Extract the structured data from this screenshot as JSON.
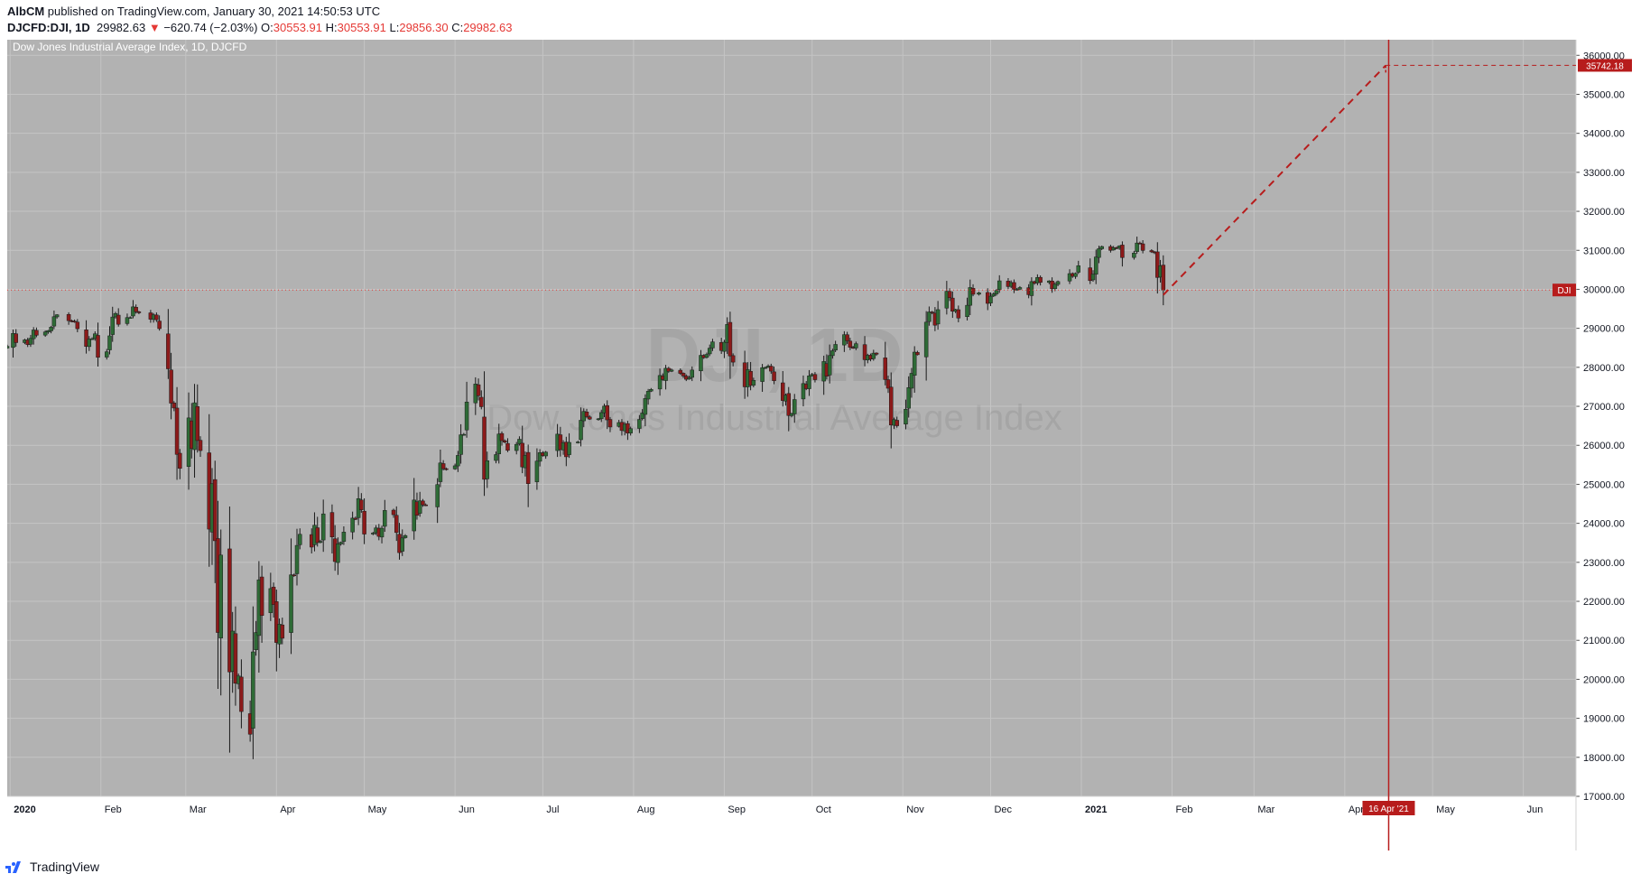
{
  "header": {
    "author": "AlbCM",
    "published_text": " published on TradingView.com, January 30, 2021 14:50:53 UTC",
    "symbol": "DJCFD:DJI, 1D",
    "last": "29982.63",
    "arrow": "▼",
    "change": "−620.74 (−2.03%)",
    "o_label": "O:",
    "o_value": "30553.91",
    "h_label": "H:",
    "h_value": "30553.91",
    "l_label": "L:",
    "l_value": "29856.30",
    "c_label": "C:",
    "c_value": "29982.63"
  },
  "footer": {
    "brand": "TradingView",
    "logo_icon": "tradingview-logo-icon"
  },
  "colors": {
    "background": "#b2b2b2",
    "grid": "#c4c4c4",
    "up": "#2e6b36",
    "down": "#8c1a1a",
    "accent": "#b71c1c",
    "last_price_line": "#e53935"
  },
  "chart_data": {
    "type": "candlestick",
    "title": "Dow Jones Industrial Average Index, 1D, DJCFD",
    "watermark_symbol": "DJI, 1D",
    "watermark_name": "Dow Jones Industrial Average Index",
    "ylim": [
      17000,
      36400
    ],
    "y_ticks": [
      17000,
      18000,
      19000,
      20000,
      21000,
      22000,
      23000,
      24000,
      25000,
      26000,
      27000,
      28000,
      29000,
      30000,
      31000,
      32000,
      33000,
      34000,
      35000,
      36000
    ],
    "y_tick_labels": [
      "17000.00",
      "18000.00",
      "19000.00",
      "20000.00",
      "21000.00",
      "22000.00",
      "23000.00",
      "24000.00",
      "25000.00",
      "26000.00",
      "27000.00",
      "28000.00",
      "29000.00",
      "30000.00",
      "31000.00",
      "32000.00",
      "33000.00",
      "34000.00",
      "35000.00",
      "36000.00"
    ],
    "x_months": [
      "2020",
      "Feb",
      "Mar",
      "Apr",
      "May",
      "Jun",
      "Jul",
      "Aug",
      "Sep",
      "Oct",
      "Nov",
      "Dec",
      "2021",
      "Feb",
      "Mar",
      "Apr",
      "May",
      "Jun"
    ],
    "x_month_dates": [
      "2020-01-01",
      "2020-02-01",
      "2020-03-01",
      "2020-04-01",
      "2020-05-01",
      "2020-06-01",
      "2020-07-01",
      "2020-08-01",
      "2020-09-01",
      "2020-10-01",
      "2020-11-01",
      "2020-12-01",
      "2021-01-01",
      "2021-02-01",
      "2021-03-01",
      "2021-04-01",
      "2021-05-01",
      "2021-06-01"
    ],
    "x_range": [
      "2019-12-31",
      "2021-06-19"
    ],
    "grid": true,
    "closes": [
      [
        "2019-12-31",
        28538
      ],
      [
        "2020-01-02",
        28869
      ],
      [
        "2020-01-03",
        28634
      ],
      [
        "2020-01-06",
        28703
      ],
      [
        "2020-01-07",
        28583
      ],
      [
        "2020-01-08",
        28745
      ],
      [
        "2020-01-09",
        28957
      ],
      [
        "2020-01-10",
        28824
      ],
      [
        "2020-01-13",
        28907
      ],
      [
        "2020-01-14",
        28940
      ],
      [
        "2020-01-15",
        29030
      ],
      [
        "2020-01-16",
        29298
      ],
      [
        "2020-01-17",
        29348
      ],
      [
        "2020-01-21",
        29196
      ],
      [
        "2020-01-22",
        29186
      ],
      [
        "2020-01-23",
        29160
      ],
      [
        "2020-01-24",
        28990
      ],
      [
        "2020-01-27",
        28535
      ],
      [
        "2020-01-28",
        28723
      ],
      [
        "2020-01-29",
        28734
      ],
      [
        "2020-01-30",
        28859
      ],
      [
        "2020-01-31",
        28256
      ],
      [
        "2020-02-03",
        28399
      ],
      [
        "2020-02-04",
        28808
      ],
      [
        "2020-02-05",
        29290
      ],
      [
        "2020-02-06",
        29380
      ],
      [
        "2020-02-07",
        29103
      ],
      [
        "2020-02-10",
        29276
      ],
      [
        "2020-02-11",
        29276
      ],
      [
        "2020-02-12",
        29551
      ],
      [
        "2020-02-13",
        29424
      ],
      [
        "2020-02-14",
        29398
      ],
      [
        "2020-02-18",
        29232
      ],
      [
        "2020-02-19",
        29348
      ],
      [
        "2020-02-20",
        29220
      ],
      [
        "2020-02-21",
        28992
      ],
      [
        "2020-02-24",
        27961
      ],
      [
        "2020-02-25",
        27081
      ],
      [
        "2020-02-26",
        26957
      ],
      [
        "2020-02-27",
        25767
      ],
      [
        "2020-02-28",
        25409
      ],
      [
        "2020-03-02",
        26703
      ],
      [
        "2020-03-03",
        25917
      ],
      [
        "2020-03-04",
        27091
      ],
      [
        "2020-03-05",
        26122
      ],
      [
        "2020-03-06",
        25865
      ],
      [
        "2020-03-09",
        23851
      ],
      [
        "2020-03-10",
        25018
      ],
      [
        "2020-03-11",
        23553
      ],
      [
        "2020-03-12",
        21200
      ],
      [
        "2020-03-13",
        23186
      ],
      [
        "2020-03-16",
        20189
      ],
      [
        "2020-03-17",
        21237
      ],
      [
        "2020-03-18",
        19899
      ],
      [
        "2020-03-19",
        20087
      ],
      [
        "2020-03-20",
        19174
      ],
      [
        "2020-03-23",
        18592
      ],
      [
        "2020-03-24",
        20704
      ],
      [
        "2020-03-25",
        21201
      ],
      [
        "2020-03-26",
        22552
      ],
      [
        "2020-03-27",
        21637
      ],
      [
        "2020-03-30",
        22327
      ],
      [
        "2020-03-31",
        21917
      ],
      [
        "2020-04-01",
        20944
      ],
      [
        "2020-04-02",
        21413
      ],
      [
        "2020-04-03",
        21053
      ],
      [
        "2020-04-06",
        22680
      ],
      [
        "2020-04-07",
        22654
      ],
      [
        "2020-04-08",
        23434
      ],
      [
        "2020-04-09",
        23719
      ],
      [
        "2020-04-13",
        23390
      ],
      [
        "2020-04-14",
        23950
      ],
      [
        "2020-04-15",
        23505
      ],
      [
        "2020-04-16",
        23538
      ],
      [
        "2020-04-17",
        24242
      ],
      [
        "2020-04-20",
        23650
      ],
      [
        "2020-04-21",
        23019
      ],
      [
        "2020-04-22",
        23475
      ],
      [
        "2020-04-23",
        23515
      ],
      [
        "2020-04-24",
        23775
      ],
      [
        "2020-04-27",
        24134
      ],
      [
        "2020-04-28",
        24101
      ],
      [
        "2020-04-29",
        24634
      ],
      [
        "2020-04-30",
        24346
      ],
      [
        "2020-05-01",
        23724
      ],
      [
        "2020-05-04",
        23750
      ],
      [
        "2020-05-05",
        23883
      ],
      [
        "2020-05-06",
        23665
      ],
      [
        "2020-05-07",
        23875
      ],
      [
        "2020-05-08",
        24331
      ],
      [
        "2020-05-11",
        24221
      ],
      [
        "2020-05-12",
        23764
      ],
      [
        "2020-05-13",
        23248
      ],
      [
        "2020-05-14",
        23625
      ],
      [
        "2020-05-15",
        23685
      ],
      [
        "2020-05-18",
        24597
      ],
      [
        "2020-05-19",
        24206
      ],
      [
        "2020-05-20",
        24576
      ],
      [
        "2020-05-21",
        24474
      ],
      [
        "2020-05-22",
        24465
      ],
      [
        "2020-05-26",
        24995
      ],
      [
        "2020-05-27",
        25548
      ],
      [
        "2020-05-28",
        25401
      ],
      [
        "2020-05-29",
        25383
      ],
      [
        "2020-06-01",
        25475
      ],
      [
        "2020-06-02",
        25742
      ],
      [
        "2020-06-03",
        26270
      ],
      [
        "2020-06-04",
        26281
      ],
      [
        "2020-06-05",
        27111
      ],
      [
        "2020-06-08",
        27572
      ],
      [
        "2020-06-09",
        27272
      ],
      [
        "2020-06-10",
        26990
      ],
      [
        "2020-06-11",
        25128
      ],
      [
        "2020-06-12",
        25606
      ],
      [
        "2020-06-15",
        25763
      ],
      [
        "2020-06-16",
        26290
      ],
      [
        "2020-06-17",
        26120
      ],
      [
        "2020-06-18",
        26080
      ],
      [
        "2020-06-19",
        25871
      ],
      [
        "2020-06-22",
        26025
      ],
      [
        "2020-06-23",
        26156
      ],
      [
        "2020-06-24",
        25446
      ],
      [
        "2020-06-25",
        25745
      ],
      [
        "2020-06-26",
        25016
      ],
      [
        "2020-06-29",
        25596
      ],
      [
        "2020-06-30",
        25813
      ],
      [
        "2020-07-01",
        25735
      ],
      [
        "2020-07-02",
        25827
      ],
      [
        "2020-07-06",
        26287
      ],
      [
        "2020-07-07",
        25890
      ],
      [
        "2020-07-08",
        26067
      ],
      [
        "2020-07-09",
        25706
      ],
      [
        "2020-07-10",
        26075
      ],
      [
        "2020-07-13",
        26086
      ],
      [
        "2020-07-14",
        26643
      ],
      [
        "2020-07-15",
        26870
      ],
      [
        "2020-07-16",
        26734
      ],
      [
        "2020-07-17",
        26672
      ],
      [
        "2020-07-20",
        26680
      ],
      [
        "2020-07-21",
        26840
      ],
      [
        "2020-07-22",
        27005
      ],
      [
        "2020-07-23",
        26652
      ],
      [
        "2020-07-24",
        26470
      ],
      [
        "2020-07-27",
        26584
      ],
      [
        "2020-07-28",
        26379
      ],
      [
        "2020-07-29",
        26540
      ],
      [
        "2020-07-30",
        26314
      ],
      [
        "2020-07-31",
        26428
      ],
      [
        "2020-08-03",
        26664
      ],
      [
        "2020-08-04",
        26828
      ],
      [
        "2020-08-05",
        27201
      ],
      [
        "2020-08-06",
        27387
      ],
      [
        "2020-08-07",
        27433
      ],
      [
        "2020-08-10",
        27791
      ],
      [
        "2020-08-11",
        27686
      ],
      [
        "2020-08-12",
        27976
      ],
      [
        "2020-08-13",
        27896
      ],
      [
        "2020-08-14",
        27931
      ],
      [
        "2020-08-17",
        27844
      ],
      [
        "2020-08-18",
        27778
      ],
      [
        "2020-08-19",
        27692
      ],
      [
        "2020-08-20",
        27739
      ],
      [
        "2020-08-21",
        27930
      ],
      [
        "2020-08-24",
        28308
      ],
      [
        "2020-08-25",
        28248
      ],
      [
        "2020-08-26",
        28331
      ],
      [
        "2020-08-27",
        28492
      ],
      [
        "2020-08-28",
        28653
      ],
      [
        "2020-08-31",
        28430
      ],
      [
        "2020-09-01",
        28645
      ],
      [
        "2020-09-02",
        29100
      ],
      [
        "2020-09-03",
        28292
      ],
      [
        "2020-09-04",
        28133
      ],
      [
        "2020-09-08",
        27500
      ],
      [
        "2020-09-09",
        27940
      ],
      [
        "2020-09-10",
        27535
      ],
      [
        "2020-09-11",
        27666
      ],
      [
        "2020-09-14",
        27993
      ],
      [
        "2020-09-15",
        27995
      ],
      [
        "2020-09-16",
        28032
      ],
      [
        "2020-09-17",
        27902
      ],
      [
        "2020-09-18",
        27657
      ],
      [
        "2020-09-21",
        27148
      ],
      [
        "2020-09-22",
        27288
      ],
      [
        "2020-09-23",
        26763
      ],
      [
        "2020-09-24",
        26815
      ],
      [
        "2020-09-25",
        27174
      ],
      [
        "2020-09-28",
        27584
      ],
      [
        "2020-09-29",
        27452
      ],
      [
        "2020-09-30",
        27782
      ],
      [
        "2020-10-01",
        27817
      ],
      [
        "2020-10-02",
        27683
      ],
      [
        "2020-10-05",
        28149
      ],
      [
        "2020-10-06",
        27773
      ],
      [
        "2020-10-07",
        28303
      ],
      [
        "2020-10-08",
        28426
      ],
      [
        "2020-10-09",
        28587
      ],
      [
        "2020-10-12",
        28838
      ],
      [
        "2020-10-13",
        28680
      ],
      [
        "2020-10-14",
        28514
      ],
      [
        "2020-10-15",
        28494
      ],
      [
        "2020-10-16",
        28606
      ],
      [
        "2020-10-19",
        28195
      ],
      [
        "2020-10-20",
        28309
      ],
      [
        "2020-10-21",
        28211
      ],
      [
        "2020-10-22",
        28364
      ],
      [
        "2020-10-23",
        28336
      ],
      [
        "2020-10-26",
        27685
      ],
      [
        "2020-10-27",
        27463
      ],
      [
        "2020-10-28",
        26520
      ],
      [
        "2020-10-29",
        26659
      ],
      [
        "2020-10-30",
        26502
      ],
      [
        "2020-11-02",
        26925
      ],
      [
        "2020-11-03",
        27480
      ],
      [
        "2020-11-04",
        27847
      ],
      [
        "2020-11-05",
        28390
      ],
      [
        "2020-11-06",
        28323
      ],
      [
        "2020-11-09",
        29158
      ],
      [
        "2020-11-10",
        29420
      ],
      [
        "2020-11-11",
        29398
      ],
      [
        "2020-11-12",
        29080
      ],
      [
        "2020-11-13",
        29479
      ],
      [
        "2020-11-16",
        29950
      ],
      [
        "2020-11-17",
        29784
      ],
      [
        "2020-11-18",
        29438
      ],
      [
        "2020-11-19",
        29483
      ],
      [
        "2020-11-20",
        29263
      ],
      [
        "2020-11-23",
        29591
      ],
      [
        "2020-11-24",
        30046
      ],
      [
        "2020-11-25",
        29873
      ],
      [
        "2020-11-27",
        29910
      ],
      [
        "2020-11-30",
        29639
      ],
      [
        "2020-12-01",
        29824
      ],
      [
        "2020-12-02",
        29883
      ],
      [
        "2020-12-03",
        29970
      ],
      [
        "2020-12-04",
        30218
      ],
      [
        "2020-12-07",
        30070
      ],
      [
        "2020-12-08",
        30174
      ],
      [
        "2020-12-09",
        29999
      ],
      [
        "2020-12-10",
        29999
      ],
      [
        "2020-12-11",
        30046
      ],
      [
        "2020-12-14",
        29862
      ],
      [
        "2020-12-15",
        30199
      ],
      [
        "2020-12-16",
        30154
      ],
      [
        "2020-12-17",
        30303
      ],
      [
        "2020-12-18",
        30179
      ],
      [
        "2020-12-21",
        30216
      ],
      [
        "2020-12-22",
        30015
      ],
      [
        "2020-12-23",
        30129
      ],
      [
        "2020-12-24",
        30199
      ],
      [
        "2020-12-28",
        30403
      ],
      [
        "2020-12-29",
        30335
      ],
      [
        "2020-12-30",
        30409
      ],
      [
        "2020-12-31",
        30606
      ],
      [
        "2021-01-04",
        30223
      ],
      [
        "2021-01-05",
        30391
      ],
      [
        "2021-01-06",
        30829
      ],
      [
        "2021-01-07",
        31041
      ],
      [
        "2021-01-08",
        31097
      ],
      [
        "2021-01-11",
        30998
      ],
      [
        "2021-01-12",
        31068
      ],
      [
        "2021-01-13",
        31060
      ],
      [
        "2021-01-14",
        31112
      ],
      [
        "2021-01-15",
        30814
      ],
      [
        "2021-01-19",
        30930
      ],
      [
        "2021-01-20",
        31188
      ],
      [
        "2021-01-21",
        31176
      ],
      [
        "2021-01-22",
        30997
      ],
      [
        "2021-01-25",
        30960
      ],
      [
        "2021-01-26",
        30937
      ],
      [
        "2021-01-27",
        30303
      ],
      [
        "2021-01-28",
        30603
      ],
      [
        "2021-01-29",
        29982
      ]
    ],
    "last_price": 29982.63,
    "last_price_label": "DJI",
    "projection": {
      "from": [
        "2021-01-29",
        29856.3
      ],
      "to": [
        "2021-04-15",
        35742.18
      ],
      "label": "35742.18"
    },
    "marker_date": "2021-04-16",
    "marker_label": "16 Apr '21"
  }
}
